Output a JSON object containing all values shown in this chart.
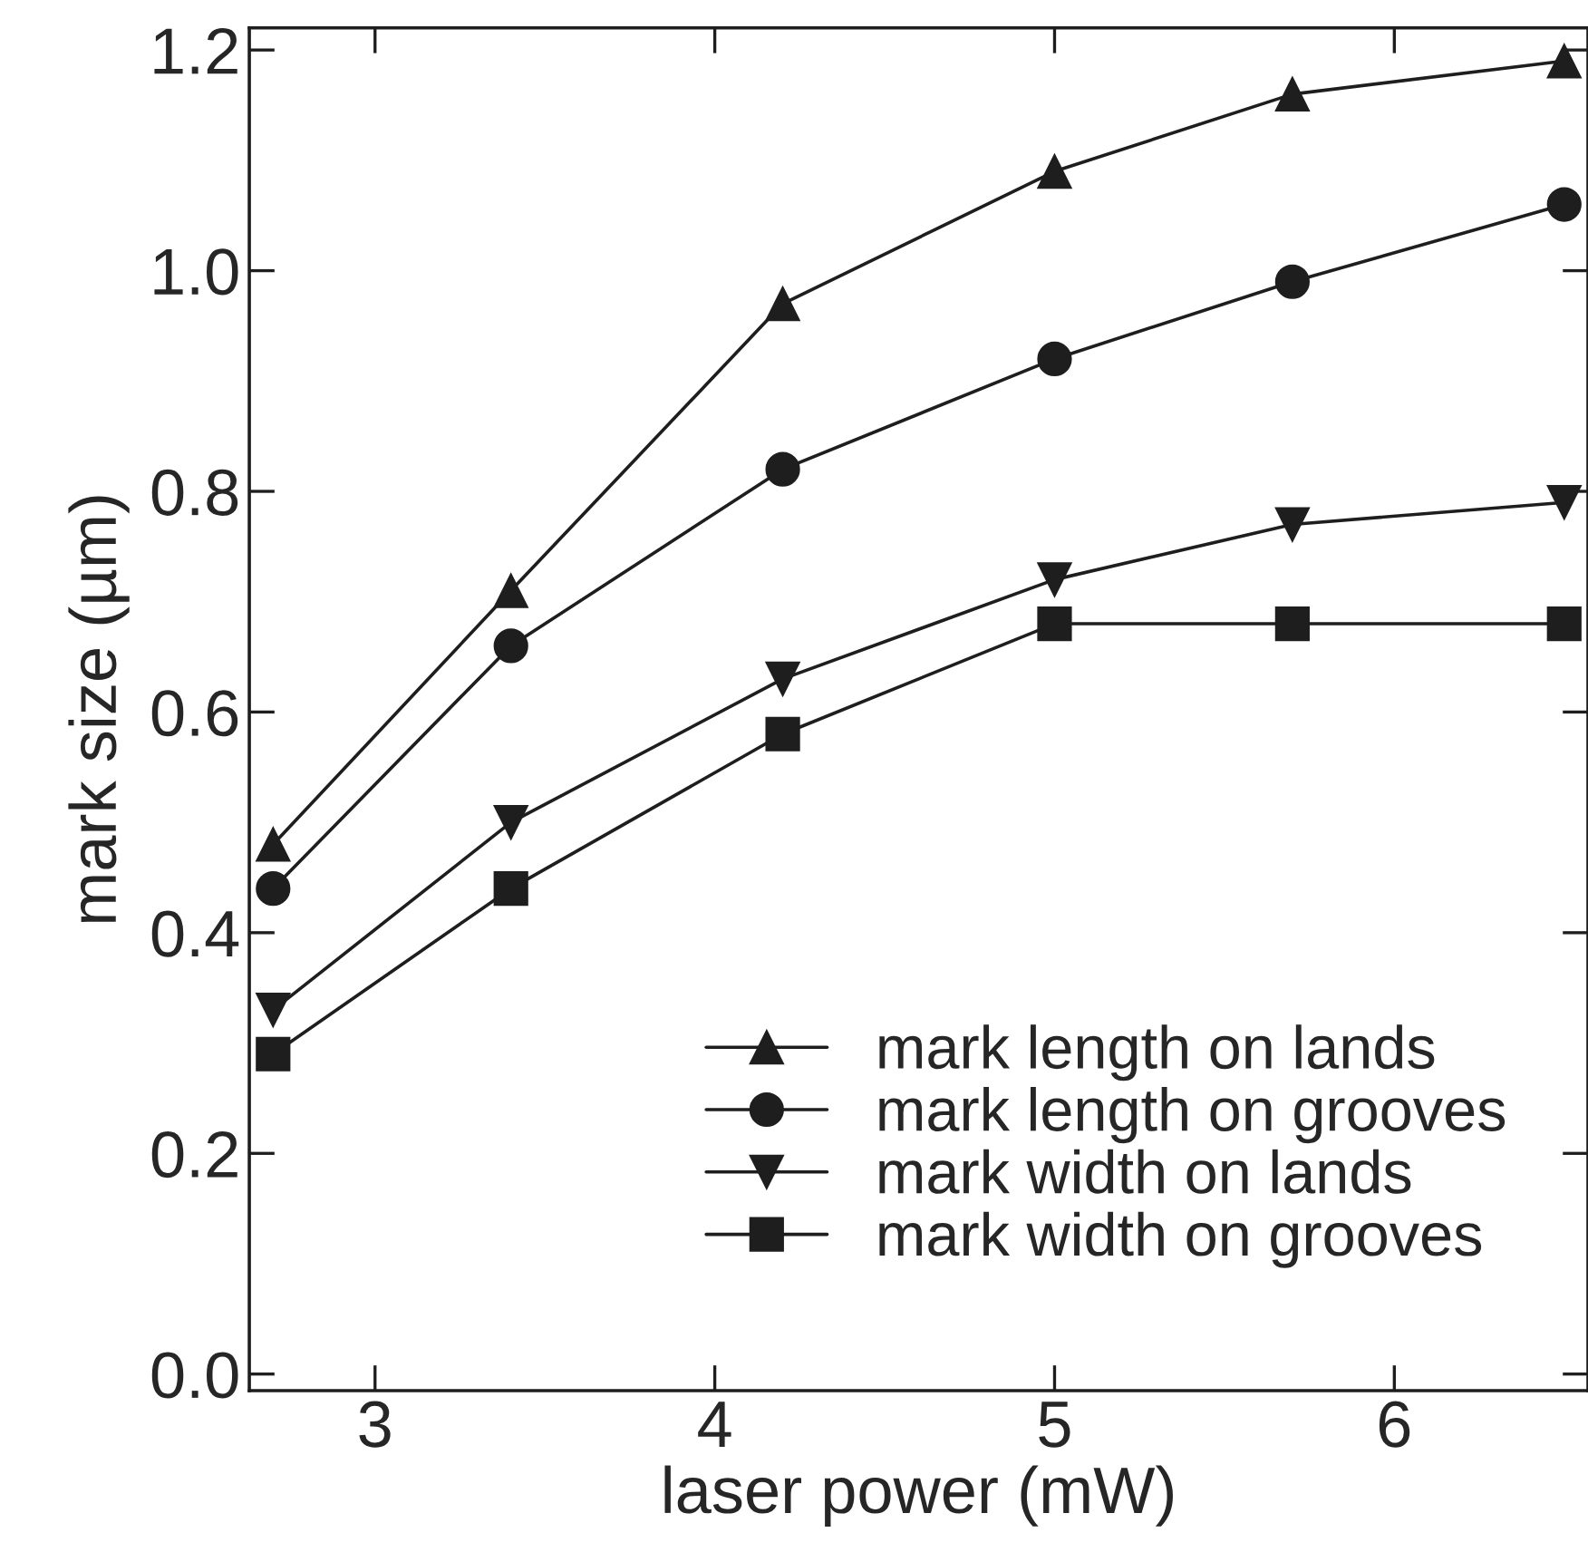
{
  "chart_data": {
    "type": "line",
    "xlabel": "laser power (mW)",
    "ylabel": "mark size (µm)",
    "x": [
      2.7,
      3.4,
      4.2,
      5.0,
      5.7,
      6.5
    ],
    "series": [
      {
        "name": "mark length on lands",
        "color": "#1e1e1e",
        "marker": "triangle",
        "values": [
          0.48,
          0.71,
          0.97,
          1.09,
          1.16,
          1.19
        ]
      },
      {
        "name": "mark length on grooves",
        "color": "#1e1e1e",
        "marker": "circle",
        "values": [
          0.44,
          0.66,
          0.82,
          0.92,
          0.99,
          1.06
        ]
      },
      {
        "name": "mark width on lands",
        "color": "#1e1e1e",
        "marker": "triangle_down",
        "values": [
          0.33,
          0.5,
          0.63,
          0.72,
          0.77,
          0.79
        ]
      },
      {
        "name": "mark width on grooves",
        "color": "#1e1e1e",
        "marker": "square",
        "values": [
          0.29,
          0.44,
          0.58,
          0.68,
          0.68,
          0.68
        ]
      }
    ],
    "xlim": [
      2.63,
      6.57
    ],
    "ylim": [
      -0.015,
      1.22
    ],
    "xticks": [
      3,
      4,
      5,
      6
    ],
    "yticks": [
      {
        "value": 0,
        "label": "0.0"
      },
      0.2,
      0.4,
      0.6,
      0.8,
      {
        "value": 1.0,
        "label": "1.0"
      },
      1.2
    ],
    "grid": false,
    "legend": "lower right",
    "line_style": "solid"
  }
}
